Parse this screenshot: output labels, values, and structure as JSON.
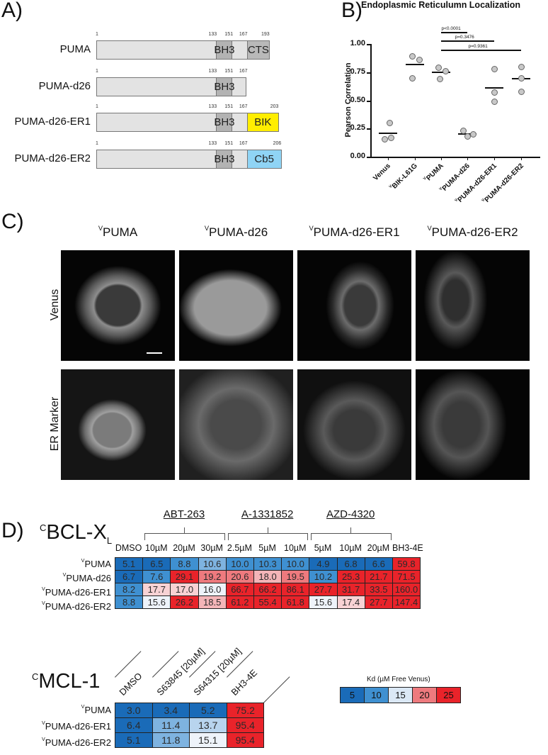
{
  "panel_a": {
    "letter": "A)",
    "constructs": [
      {
        "name": "PUMA",
        "ticks": [
          "1",
          "133",
          "151",
          "167",
          "193"
        ],
        "domains": [
          "BH3",
          "CTS"
        ],
        "tail_color": "#b9b9b9",
        "end": 193
      },
      {
        "name": "PUMA-d26",
        "ticks": [
          "1",
          "133",
          "151",
          "167"
        ],
        "domains": [
          "BH3"
        ],
        "tail_color": null,
        "end": 167
      },
      {
        "name": "PUMA-d26-ER1",
        "ticks": [
          "1",
          "133",
          "151",
          "167",
          "203"
        ],
        "domains": [
          "BH3",
          "BIK"
        ],
        "tail_color": "#ffee00",
        "end": 203
      },
      {
        "name": "PUMA-d26-ER2",
        "ticks": [
          "1",
          "133",
          "151",
          "167",
          "206"
        ],
        "domains": [
          "BH3",
          "Cb5"
        ],
        "tail_color": "#8fd4f5",
        "end": 206
      }
    ]
  },
  "chart_data": [
    {
      "type": "scatter",
      "title": "Endoplasmic Reticulumn Localization",
      "xlabel": "",
      "ylabel": "Pearson Correlation",
      "ylim": [
        0,
        1.0
      ],
      "yticks": [
        "0.00",
        "0.25",
        "0.50",
        "0.75",
        "1.00"
      ],
      "categories": [
        "Venus",
        "VBIK-L61G",
        "VPUMA",
        "VPUMA-d26",
        "VPUMA-d26-ER1",
        "VPUMA-d26-ER2"
      ],
      "points": [
        [
          0.3,
          0.16,
          0.17
        ],
        [
          0.89,
          0.86,
          0.7
        ],
        [
          0.79,
          0.76,
          0.69
        ],
        [
          0.23,
          0.18,
          0.2
        ],
        [
          0.78,
          0.57,
          0.49
        ],
        [
          0.8,
          0.7,
          0.58
        ]
      ],
      "means": [
        0.21,
        0.82,
        0.75,
        0.2,
        0.61,
        0.69
      ],
      "annotations": [
        {
          "text": "p<0.0001",
          "from": "VPUMA",
          "to": "VPUMA-d26"
        },
        {
          "text": "p=0.3476",
          "from": "VPUMA",
          "to": "VPUMA-d26-ER1"
        },
        {
          "text": "p=0.9361",
          "from": "VPUMA",
          "to": "VPUMA-d26-ER2"
        }
      ],
      "grid": false,
      "legend": null
    },
    {
      "type": "heatmap",
      "title": "CBCL-XL",
      "groups": [
        {
          "name": "ABT-263",
          "columns": [
            "10µM",
            "20µM",
            "30µM"
          ]
        },
        {
          "name": "A-1331852",
          "columns": [
            "2.5µM",
            "5µM",
            "10µM"
          ]
        },
        {
          "name": "AZD-4320",
          "columns": [
            "5µM",
            "10µM",
            "20µM"
          ]
        }
      ],
      "columns": [
        "DMSO",
        "10µM",
        "20µM",
        "30µM",
        "2.5µM",
        "5µM",
        "10µM",
        "5µM",
        "10µM",
        "20µM",
        "BH3-4E"
      ],
      "rows": [
        "VPUMA",
        "VPUMA-d26",
        "VPUMA-d26-ER1",
        "VPUMA-d26-ER2"
      ],
      "values": [
        [
          5.1,
          6.5,
          8.8,
          10.6,
          10.0,
          10.3,
          10.0,
          4.9,
          6.8,
          6.6,
          59.8
        ],
        [
          6.7,
          7.6,
          29.1,
          19.2,
          20.6,
          18.0,
          19.5,
          10.2,
          25.3,
          21.7,
          71.5
        ],
        [
          8.2,
          17.7,
          17.0,
          16.0,
          66.7,
          66.2,
          86.1,
          27.7,
          31.7,
          33.5,
          160.0
        ],
        [
          8.8,
          15.6,
          26.2,
          18.5,
          61.2,
          55.4,
          61.8,
          15.6,
          17.4,
          27.7,
          147.4
        ]
      ]
    },
    {
      "type": "heatmap",
      "title": "CMCL-1",
      "columns": [
        "DMSO",
        "S63845 [20µM]",
        "S64315 [20µM]",
        "BH3-4E"
      ],
      "rows": [
        "VPUMA",
        "VPUMA-d26-ER1",
        "VPUMA-d26-ER2"
      ],
      "values": [
        [
          3.0,
          3.4,
          5.2,
          75.2
        ],
        [
          6.4,
          11.4,
          13.7,
          95.4
        ],
        [
          5.1,
          11.8,
          15.1,
          95.4
        ]
      ]
    }
  ],
  "panel_b": {
    "letter": "B)",
    "title": "Endoplasmic Reticulumn Localization",
    "ylabel": "Pearson Correlation",
    "yticks": [
      "0.00",
      "0.25",
      "0.50",
      "0.75",
      "1.00"
    ],
    "categories": [
      {
        "sup": "",
        "label": "Venus"
      },
      {
        "sup": "V",
        "label": "BIK-L61G"
      },
      {
        "sup": "V",
        "label": "PUMA"
      },
      {
        "sup": "V",
        "label": "PUMA-d26"
      },
      {
        "sup": "V",
        "label": "PUMA-d26-ER1"
      },
      {
        "sup": "V",
        "label": "PUMA-d26-ER2"
      }
    ],
    "pvalues": [
      "p<0.0001",
      "p=0.3476",
      "p=0.9361"
    ]
  },
  "panel_c": {
    "letter": "C)",
    "columns": [
      {
        "sup": "V",
        "label": "PUMA"
      },
      {
        "sup": "V",
        "label": "PUMA-d26"
      },
      {
        "sup": "V",
        "label": "PUMA-d26-ER1"
      },
      {
        "sup": "V",
        "label": "PUMA-d26-ER2"
      }
    ],
    "rows": [
      "Venus",
      "ER Marker"
    ]
  },
  "panel_d": {
    "letter": "D)",
    "bcl": {
      "sup": "C",
      "title": "BCL-X",
      "sub": "L"
    },
    "mcl": {
      "sup": "C",
      "title": "MCL-1"
    },
    "row_sup": "V",
    "bcl_rows": [
      "PUMA",
      "PUMA-d26",
      "PUMA-d26-ER1",
      "PUMA-d26-ER2"
    ],
    "mcl_rows": [
      "PUMA",
      "PUMA-d26-ER1",
      "PUMA-d26-ER2"
    ],
    "legend": {
      "title": "Kd (µM Free Venus)",
      "stops": [
        "5",
        "10",
        "15",
        "20",
        "25"
      ],
      "colors": [
        "#1a6bb8",
        "#3f90d1",
        "#dbe8f5",
        "#ee7a7e",
        "#e9232a"
      ]
    }
  }
}
